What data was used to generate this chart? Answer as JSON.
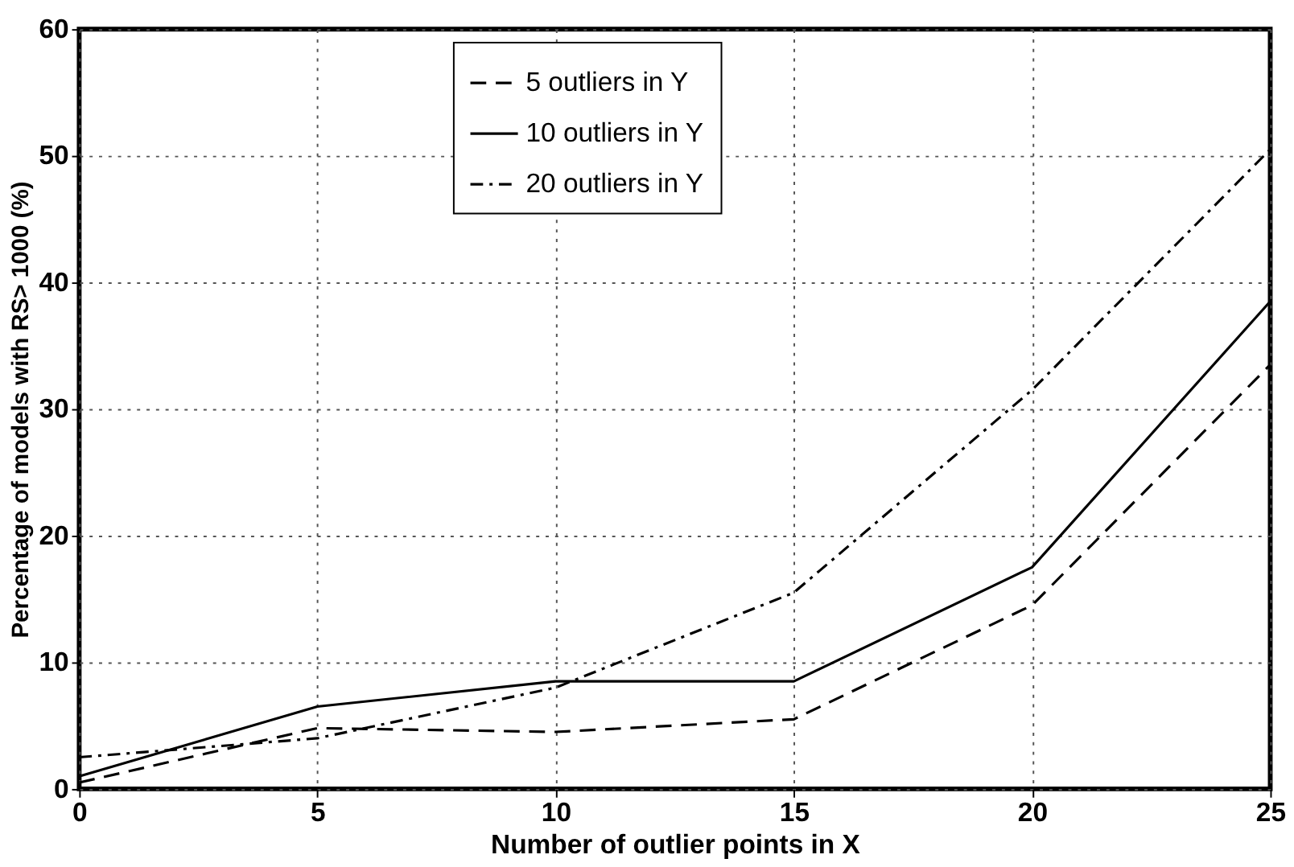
{
  "chart_data": {
    "type": "line",
    "xlabel": "Number of outlier points in X",
    "ylabel": "Percentage of models with RS> 1000 (%)",
    "x": [
      0,
      5,
      10,
      15,
      20,
      25
    ],
    "series": [
      {
        "name": "5 outliers in Y",
        "color": "#000000",
        "line_style": "dashed",
        "values": [
          0.5,
          4.8,
          4.5,
          5.5,
          14.5,
          33.5
        ]
      },
      {
        "name": "10 outliers in Y",
        "color": "#000000",
        "line_style": "solid",
        "values": [
          1,
          6.5,
          8.5,
          8.5,
          17.5,
          38.5
        ]
      },
      {
        "name": "20 outliers in Y",
        "color": "#000000",
        "line_style": "dashdot",
        "values": [
          2.5,
          4,
          8,
          15.5,
          31.5,
          50.5
        ]
      }
    ],
    "xlim": [
      0,
      25
    ],
    "xticks": [
      0,
      5,
      10,
      15,
      20,
      25
    ],
    "ylim": [
      0,
      60
    ],
    "yticks": [
      0,
      10,
      20,
      30,
      40,
      50,
      60
    ],
    "grid": true,
    "legend": "top",
    "marker": "none"
  }
}
